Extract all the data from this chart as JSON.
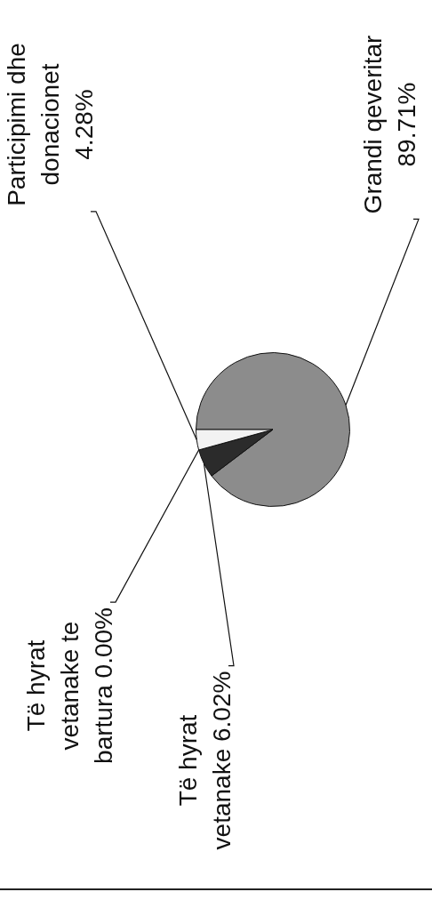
{
  "chart_data": {
    "type": "pie",
    "categories": [
      "Grandi qeveritar",
      "Të hyrat vetanake",
      "Të hyrat vetanake te bartura",
      "Participimi dhe donacionet"
    ],
    "values": [
      89.71,
      6.02,
      0,
      4.28
    ],
    "value_labels": [
      "89.71%",
      "6.02%",
      "0.00%",
      "4.28%"
    ],
    "colors": [
      "#8c8c8c",
      "#2b2b2b",
      "#ffffff",
      "#f2f2f2"
    ]
  }
}
